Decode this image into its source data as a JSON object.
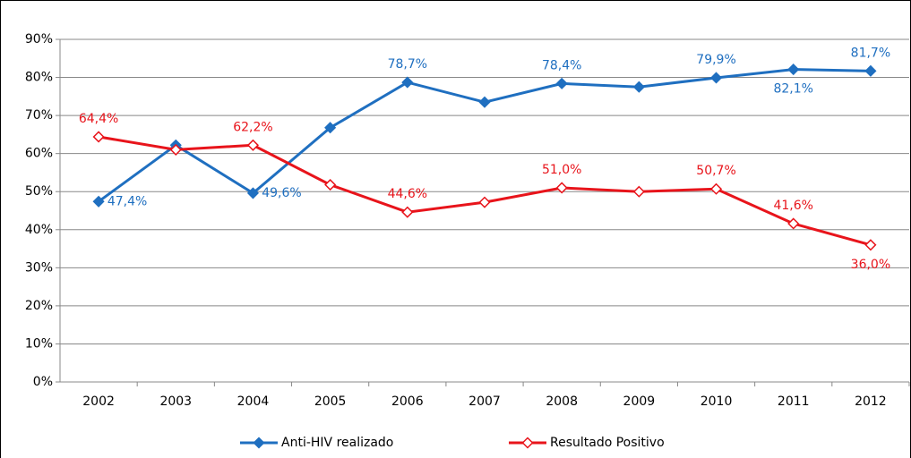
{
  "chart_data": {
    "type": "line",
    "categories": [
      "2002",
      "2003",
      "2004",
      "2005",
      "2006",
      "2007",
      "2008",
      "2009",
      "2010",
      "2011",
      "2012"
    ],
    "series": [
      {
        "name": "Anti-HIV realizado",
        "color": "#1f6fc0",
        "marker": "filled-diamond",
        "values": [
          47.4,
          62.2,
          49.6,
          66.8,
          78.7,
          73.5,
          78.4,
          77.5,
          79.9,
          82.1,
          81.7
        ],
        "value_labels": [
          "47,4%",
          null,
          "49,6%",
          null,
          "78,7%",
          null,
          "78,4%",
          null,
          "79,9%",
          "82,1%",
          "81,7%"
        ]
      },
      {
        "name": "Resultado Positivo",
        "color": "#e8141b",
        "marker": "hollow-diamond",
        "values": [
          64.4,
          61.0,
          62.2,
          51.8,
          44.6,
          47.2,
          51.0,
          50.0,
          50.7,
          41.6,
          36.0
        ],
        "value_labels": [
          "64,4%",
          null,
          "62,2%",
          null,
          "44,6%",
          null,
          "51,0%",
          null,
          "50,7%",
          "41,6%",
          "36,0%"
        ]
      }
    ],
    "ylim": [
      0,
      90
    ],
    "yticks": [
      {
        "value": 0,
        "label": "0%"
      },
      {
        "value": 10,
        "label": "10%"
      },
      {
        "value": 20,
        "label": "20%"
      },
      {
        "value": 30,
        "label": "30%"
      },
      {
        "value": 40,
        "label": "40%"
      },
      {
        "value": 50,
        "label": "50%"
      },
      {
        "value": 60,
        "label": "60%"
      },
      {
        "value": 70,
        "label": "70%"
      },
      {
        "value": 80,
        "label": "80%"
      },
      {
        "value": 90,
        "label": "90%"
      }
    ],
    "grid": true,
    "legend": "bottom"
  }
}
